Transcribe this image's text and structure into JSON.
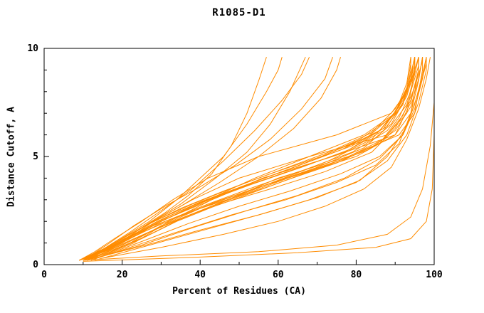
{
  "title": "R1085-D1",
  "chart_data": {
    "type": "line",
    "title": "R1085-D1",
    "xlabel": "Percent of Residues (CA)",
    "ylabel": "Distance Cutoff, A",
    "xlim": [
      0,
      100
    ],
    "ylim": [
      0,
      10
    ],
    "x_major_ticks": [
      0,
      20,
      40,
      60,
      80,
      100
    ],
    "x_minor_ticks": [
      10,
      30,
      50,
      70,
      90
    ],
    "y_major_ticks": [
      0,
      5,
      10
    ],
    "y_minor_ticks": [
      1,
      2,
      3,
      4,
      6,
      7,
      8,
      9
    ],
    "grid": "off",
    "legend": "none",
    "line_color": "#ff8c00",
    "axis_color": "#000000",
    "background": "#ffffff",
    "series": [
      [
        [
          9,
          0.2
        ],
        [
          14,
          0.5
        ],
        [
          20,
          1
        ],
        [
          28,
          2
        ],
        [
          38,
          3
        ],
        [
          50,
          4
        ],
        [
          68,
          5
        ],
        [
          88,
          6
        ],
        [
          93,
          7
        ],
        [
          94,
          8
        ],
        [
          95,
          9
        ],
        [
          95,
          9.6
        ]
      ],
      [
        [
          10,
          0.2
        ],
        [
          16,
          0.5
        ],
        [
          23,
          1
        ],
        [
          32,
          2
        ],
        [
          43,
          3
        ],
        [
          56,
          4
        ],
        [
          74,
          5
        ],
        [
          90,
          6
        ],
        [
          94,
          7
        ],
        [
          95,
          8
        ],
        [
          96,
          9
        ],
        [
          96,
          9.6
        ]
      ],
      [
        [
          10,
          0.2
        ],
        [
          18,
          0.7
        ],
        [
          26,
          1.3
        ],
        [
          36,
          2.2
        ],
        [
          47,
          3
        ],
        [
          60,
          4
        ],
        [
          78,
          5
        ],
        [
          91,
          6
        ],
        [
          95,
          7
        ],
        [
          96,
          8
        ],
        [
          97,
          9
        ],
        [
          97,
          9.6
        ]
      ],
      [
        [
          9,
          0.2
        ],
        [
          13,
          0.6
        ],
        [
          18,
          1.2
        ],
        [
          25,
          2
        ],
        [
          33,
          3
        ],
        [
          42,
          4
        ],
        [
          55,
          5
        ],
        [
          75,
          6
        ],
        [
          89,
          7
        ],
        [
          93,
          8
        ],
        [
          94,
          9
        ],
        [
          94,
          9.6
        ]
      ],
      [
        [
          10,
          0.2
        ],
        [
          15,
          0.5
        ],
        [
          22,
          1
        ],
        [
          30,
          1.8
        ],
        [
          40,
          2.6
        ],
        [
          52,
          3.4
        ],
        [
          66,
          4.2
        ],
        [
          80,
          5
        ],
        [
          90,
          6
        ],
        [
          94,
          7.5
        ],
        [
          96,
          9
        ],
        [
          96,
          9.6
        ]
      ],
      [
        [
          10,
          0.2
        ],
        [
          16,
          0.8
        ],
        [
          24,
          1.6
        ],
        [
          31,
          2.4
        ],
        [
          37,
          3.2
        ],
        [
          43,
          4.2
        ],
        [
          48,
          5.5
        ],
        [
          52,
          7
        ],
        [
          55,
          8.5
        ],
        [
          57,
          9.6
        ]
      ],
      [
        [
          11,
          0.2
        ],
        [
          18,
          1
        ],
        [
          27,
          2
        ],
        [
          34,
          3
        ],
        [
          40,
          4
        ],
        [
          46,
          5
        ],
        [
          52,
          6.5
        ],
        [
          57,
          8
        ],
        [
          60,
          9
        ],
        [
          61,
          9.6
        ]
      ],
      [
        [
          10,
          0.2
        ],
        [
          17,
          0.9
        ],
        [
          26,
          1.8
        ],
        [
          35,
          2.8
        ],
        [
          44,
          4
        ],
        [
          52,
          5.2
        ],
        [
          58,
          6.5
        ],
        [
          63,
          8
        ],
        [
          66,
          9.2
        ],
        [
          67,
          9.6
        ]
      ],
      [
        [
          10,
          0.2
        ],
        [
          19,
          1
        ],
        [
          30,
          2
        ],
        [
          42,
          3
        ],
        [
          54,
          4
        ],
        [
          68,
          5
        ],
        [
          82,
          6
        ],
        [
          90,
          7
        ],
        [
          93,
          8.2
        ],
        [
          94,
          9.3
        ],
        [
          94,
          9.6
        ]
      ],
      [
        [
          12,
          0.2
        ],
        [
          22,
          0.8
        ],
        [
          34,
          1.5
        ],
        [
          48,
          2.3
        ],
        [
          62,
          3
        ],
        [
          75,
          3.8
        ],
        [
          85,
          4.6
        ],
        [
          91,
          5.6
        ],
        [
          94,
          7
        ],
        [
          96,
          8.5
        ],
        [
          97,
          9.6
        ]
      ],
      [
        [
          13,
          0.3
        ],
        [
          26,
          0.9
        ],
        [
          40,
          1.6
        ],
        [
          55,
          2.3
        ],
        [
          68,
          3
        ],
        [
          80,
          3.8
        ],
        [
          88,
          4.8
        ],
        [
          93,
          6
        ],
        [
          96,
          7.5
        ],
        [
          98,
          9
        ],
        [
          98,
          9.6
        ]
      ],
      [
        [
          15,
          0.3
        ],
        [
          30,
          0.8
        ],
        [
          46,
          1.4
        ],
        [
          60,
          2
        ],
        [
          72,
          2.7
        ],
        [
          82,
          3.5
        ],
        [
          89,
          4.5
        ],
        [
          93,
          5.8
        ],
        [
          96,
          7.2
        ],
        [
          98,
          8.6
        ],
        [
          99,
          9.6
        ]
      ],
      [
        [
          10,
          0.2
        ],
        [
          30,
          0.4
        ],
        [
          55,
          0.6
        ],
        [
          75,
          0.9
        ],
        [
          88,
          1.4
        ],
        [
          94,
          2.2
        ],
        [
          97,
          3.5
        ],
        [
          99,
          5.5
        ],
        [
          100,
          7.5
        ],
        [
          100,
          9.6
        ]
      ],
      [
        [
          10,
          0.15
        ],
        [
          40,
          0.35
        ],
        [
          65,
          0.55
        ],
        [
          85,
          0.8
        ],
        [
          94,
          1.2
        ],
        [
          98,
          2
        ],
        [
          99.5,
          3.5
        ],
        [
          100,
          6
        ],
        [
          100,
          9.6
        ]
      ],
      [
        [
          9,
          0.2
        ],
        [
          15,
          0.6
        ],
        [
          21,
          1.1
        ],
        [
          29,
          1.9
        ],
        [
          39,
          2.8
        ],
        [
          51,
          3.6
        ],
        [
          64,
          4.4
        ],
        [
          77,
          5.2
        ],
        [
          87,
          6.2
        ],
        [
          92,
          7.4
        ],
        [
          94,
          8.8
        ],
        [
          95,
          9.6
        ]
      ],
      [
        [
          10,
          0.2
        ],
        [
          16,
          0.7
        ],
        [
          24,
          1.4
        ],
        [
          33,
          2.1
        ],
        [
          44,
          2.9
        ],
        [
          57,
          3.7
        ],
        [
          70,
          4.5
        ],
        [
          82,
          5.4
        ],
        [
          89,
          6.5
        ],
        [
          93,
          7.8
        ],
        [
          95,
          9
        ],
        [
          95,
          9.6
        ]
      ],
      [
        [
          11,
          0.2
        ],
        [
          17,
          0.6
        ],
        [
          25,
          1.2
        ],
        [
          34,
          2
        ],
        [
          45,
          2.8
        ],
        [
          58,
          3.5
        ],
        [
          72,
          4.3
        ],
        [
          84,
          5.2
        ],
        [
          90,
          6.3
        ],
        [
          94,
          7.6
        ],
        [
          96,
          9
        ],
        [
          96,
          9.6
        ]
      ],
      [
        [
          10,
          0.2
        ],
        [
          18,
          0.8
        ],
        [
          28,
          1.6
        ],
        [
          39,
          2.4
        ],
        [
          50,
          3.1
        ],
        [
          62,
          3.9
        ],
        [
          75,
          4.7
        ],
        [
          86,
          5.6
        ],
        [
          91,
          6.8
        ],
        [
          94,
          8
        ],
        [
          96,
          9.2
        ],
        [
          96,
          9.6
        ]
      ],
      [
        [
          9,
          0.2
        ],
        [
          14,
          0.5
        ],
        [
          20,
          0.9
        ],
        [
          27,
          1.5
        ],
        [
          36,
          2.2
        ],
        [
          47,
          3
        ],
        [
          60,
          3.9
        ],
        [
          73,
          4.8
        ],
        [
          84,
          5.8
        ],
        [
          90,
          7
        ],
        [
          93,
          8.4
        ],
        [
          94,
          9.6
        ]
      ],
      [
        [
          10,
          0.2
        ],
        [
          20,
          1.1
        ],
        [
          31,
          2.1
        ],
        [
          43,
          3
        ],
        [
          55,
          3.9
        ],
        [
          67,
          4.7
        ],
        [
          79,
          5.5
        ],
        [
          88,
          6.4
        ],
        [
          92,
          7.5
        ],
        [
          95,
          8.8
        ],
        [
          95,
          9.6
        ]
      ],
      [
        [
          10,
          0.2
        ],
        [
          15,
          0.7
        ],
        [
          22,
          1.5
        ],
        [
          30,
          2.5
        ],
        [
          38,
          3.5
        ],
        [
          46,
          4.8
        ],
        [
          54,
          6.2
        ],
        [
          61,
          7.6
        ],
        [
          66,
          8.8
        ],
        [
          68,
          9.6
        ]
      ],
      [
        [
          10,
          0.2
        ],
        [
          16,
          0.8
        ],
        [
          25,
          1.7
        ],
        [
          35,
          2.7
        ],
        [
          45,
          3.8
        ],
        [
          55,
          5
        ],
        [
          64,
          6.3
        ],
        [
          71,
          7.7
        ],
        [
          75,
          9
        ],
        [
          76,
          9.6
        ]
      ],
      [
        [
          11,
          0.2
        ],
        [
          21,
          1
        ],
        [
          33,
          2
        ],
        [
          46,
          2.9
        ],
        [
          59,
          3.7
        ],
        [
          71,
          4.5
        ],
        [
          83,
          5.3
        ],
        [
          90,
          6.2
        ],
        [
          94,
          7.3
        ],
        [
          96,
          8.6
        ],
        [
          97,
          9.6
        ]
      ],
      [
        [
          12,
          0.2
        ],
        [
          24,
          1
        ],
        [
          37,
          1.9
        ],
        [
          50,
          2.7
        ],
        [
          63,
          3.4
        ],
        [
          76,
          4.2
        ],
        [
          86,
          5
        ],
        [
          92,
          6
        ],
        [
          95,
          7.2
        ],
        [
          97,
          8.6
        ],
        [
          98,
          9.6
        ]
      ],
      [
        [
          9,
          0.2
        ],
        [
          13,
          0.5
        ],
        [
          19,
          1
        ],
        [
          26,
          1.8
        ],
        [
          35,
          2.6
        ],
        [
          46,
          3.4
        ],
        [
          58,
          4.2
        ],
        [
          71,
          5
        ],
        [
          83,
          5.9
        ],
        [
          90,
          7
        ],
        [
          94,
          8.5
        ],
        [
          95,
          9.6
        ]
      ],
      [
        [
          10,
          0.2
        ],
        [
          17,
          0.9
        ],
        [
          27,
          1.9
        ],
        [
          38,
          2.8
        ],
        [
          49,
          3.6
        ],
        [
          61,
          4.4
        ],
        [
          73,
          5.2
        ],
        [
          84,
          6.1
        ],
        [
          90,
          7.2
        ],
        [
          94,
          8.4
        ],
        [
          96,
          9.6
        ]
      ],
      [
        [
          13,
          0.2
        ],
        [
          27,
          0.9
        ],
        [
          43,
          1.7
        ],
        [
          57,
          2.4
        ],
        [
          70,
          3.1
        ],
        [
          81,
          3.9
        ],
        [
          88,
          5
        ],
        [
          93,
          6.4
        ],
        [
          96,
          8
        ],
        [
          98,
          9.3
        ],
        [
          98,
          9.6
        ]
      ],
      [
        [
          10,
          0.2
        ],
        [
          16,
          0.9
        ],
        [
          23,
          1.8
        ],
        [
          31,
          2.7
        ],
        [
          40,
          3.6
        ],
        [
          49,
          4.6
        ],
        [
          58,
          5.8
        ],
        [
          66,
          7.2
        ],
        [
          72,
          8.6
        ],
        [
          74,
          9.6
        ]
      ],
      [
        [
          9,
          0.2
        ],
        [
          14,
          0.6
        ],
        [
          21,
          1.2
        ],
        [
          30,
          2
        ],
        [
          41,
          2.9
        ],
        [
          53,
          3.7
        ],
        [
          66,
          4.5
        ],
        [
          78,
          5.3
        ],
        [
          87,
          6.3
        ],
        [
          92,
          7.6
        ],
        [
          95,
          9
        ],
        [
          95,
          9.6
        ]
      ],
      [
        [
          10,
          0.2
        ],
        [
          19,
          1
        ],
        [
          29,
          2
        ],
        [
          40,
          2.9
        ],
        [
          52,
          3.7
        ],
        [
          64,
          4.5
        ],
        [
          76,
          5.3
        ],
        [
          86,
          6.2
        ],
        [
          91,
          7.3
        ],
        [
          94,
          8.6
        ],
        [
          95,
          9.6
        ]
      ],
      [
        [
          10,
          0.2
        ],
        [
          15,
          0.6
        ],
        [
          22,
          1.2
        ],
        [
          31,
          2
        ],
        [
          42,
          2.8
        ],
        [
          54,
          3.6
        ],
        [
          67,
          4.4
        ],
        [
          79,
          5.2
        ],
        [
          88,
          6.2
        ],
        [
          93,
          7.4
        ],
        [
          95,
          8.8
        ],
        [
          96,
          9.6
        ]
      ],
      [
        [
          11,
          0.2
        ],
        [
          18,
          0.9
        ],
        [
          28,
          1.8
        ],
        [
          40,
          2.6
        ],
        [
          52,
          3.3
        ],
        [
          64,
          4.1
        ],
        [
          77,
          4.9
        ],
        [
          87,
          5.8
        ],
        [
          92,
          6.9
        ],
        [
          95,
          8.2
        ],
        [
          97,
          9.4
        ],
        [
          97,
          9.6
        ]
      ],
      [
        [
          9,
          0.2
        ],
        [
          16,
          0.8
        ],
        [
          25,
          1.6
        ],
        [
          35,
          2.5
        ],
        [
          46,
          3.3
        ],
        [
          58,
          4.1
        ],
        [
          70,
          4.9
        ],
        [
          81,
          5.8
        ],
        [
          89,
          6.8
        ],
        [
          93,
          8
        ],
        [
          95,
          9.2
        ],
        [
          95,
          9.6
        ]
      ],
      [
        [
          12,
          0.25
        ],
        [
          25,
          0.9
        ],
        [
          38,
          1.7
        ],
        [
          52,
          2.5
        ],
        [
          65,
          3.2
        ],
        [
          77,
          4
        ],
        [
          86,
          4.9
        ],
        [
          92,
          6
        ],
        [
          95,
          7.4
        ],
        [
          97,
          8.8
        ],
        [
          98,
          9.6
        ]
      ]
    ]
  }
}
